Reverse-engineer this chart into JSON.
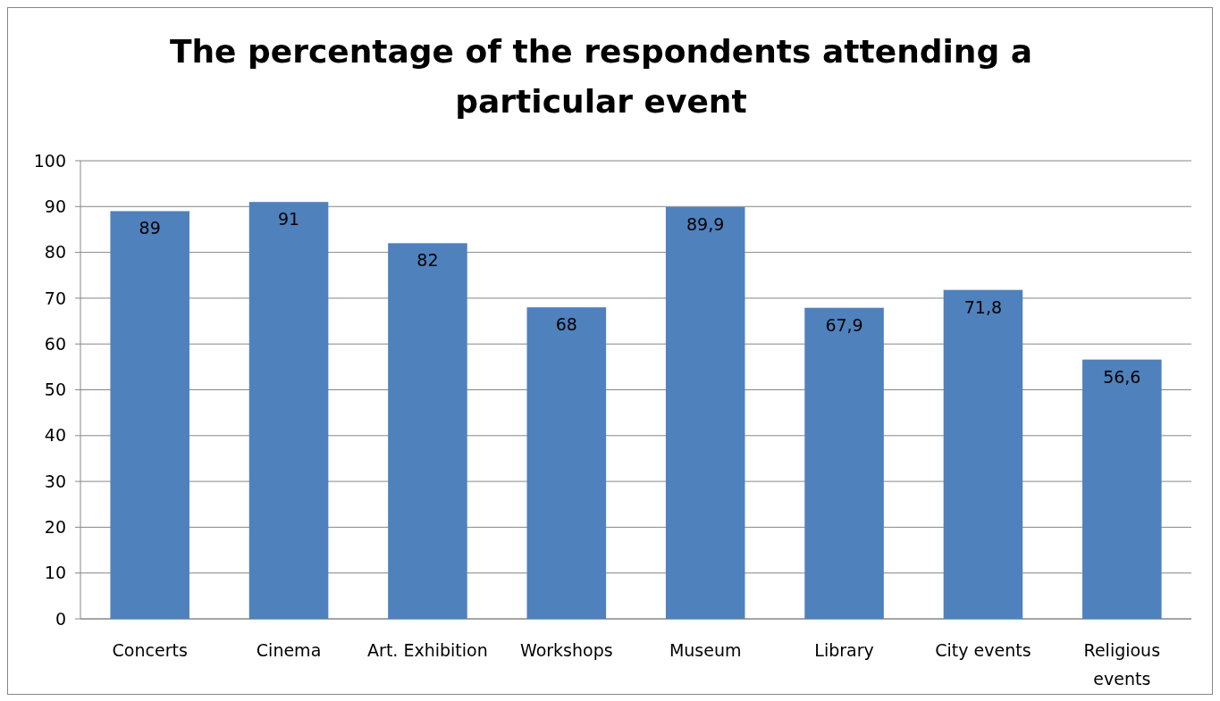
{
  "chart_data": {
    "type": "bar",
    "title": "The percentage of the respondents attending a particular event",
    "categories": [
      "Concerts",
      "Cinema",
      "Art. Exhibition",
      "Workshops",
      "Museum",
      "Library",
      "City events",
      "Religious events"
    ],
    "values": [
      89,
      91,
      82,
      68,
      89.9,
      67.9,
      71.8,
      56.6
    ],
    "value_labels": [
      "89",
      "91",
      "82",
      "68",
      "89,9",
      "67,9",
      "71,8",
      "56,6"
    ],
    "color": "#4f81bd",
    "ylim": [
      0,
      100
    ],
    "yticks": [
      0,
      10,
      20,
      30,
      40,
      50,
      60,
      70,
      80,
      90,
      100
    ],
    "grid": "y"
  }
}
